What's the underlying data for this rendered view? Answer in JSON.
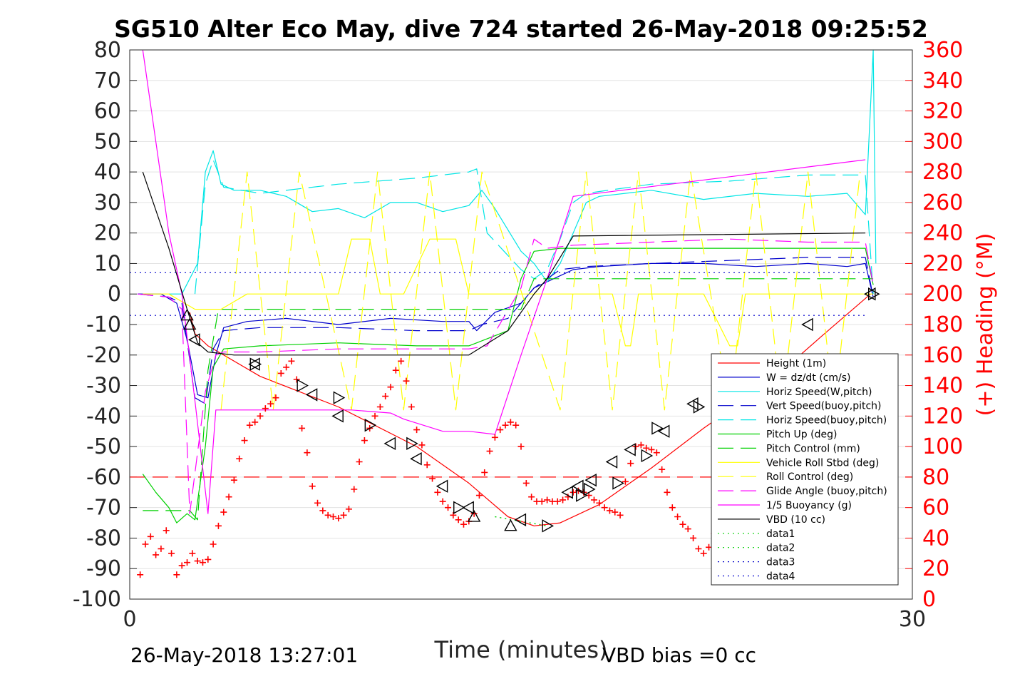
{
  "chart_data": {
    "type": "line",
    "title": "SG510 Alter Eco May, dive 724 started 26-May-2018 09:25:52",
    "xlabel": "Time (minutes)",
    "ylabel_right": "(+) Heading (°M)",
    "xlim": [
      0,
      30
    ],
    "ylim": [
      -100,
      80
    ],
    "ylim_right": [
      0,
      360
    ],
    "x_ticks": [
      "0",
      "30"
    ],
    "y_ticks": [
      "80",
      "70",
      "60",
      "50",
      "40",
      "30",
      "20",
      "10",
      "0",
      "-10",
      "-20",
      "-30",
      "-40",
      "-50",
      "-60",
      "-70",
      "-80",
      "-90",
      "-100"
    ],
    "y_ticks_right": [
      "360",
      "340",
      "320",
      "300",
      "280",
      "260",
      "240",
      "220",
      "200",
      "180",
      "160",
      "140",
      "120",
      "100",
      "80",
      "60",
      "40",
      "20",
      "0"
    ],
    "grid": true,
    "legend_position": "lower-right",
    "footer_left": "26-May-2018 13:27:01",
    "footer_right": "VBD bias =0 cc",
    "series": [
      {
        "name": "Height (1m)",
        "color": "#ff0000",
        "style": "solid",
        "x": [
          2.3,
          2.5,
          3.0,
          5.0,
          8.0,
          11.0,
          13.0,
          14.5,
          15.5,
          16.5,
          18.0,
          20.0,
          22.0,
          24.5,
          26.5,
          28.4
        ],
        "y": [
          -6,
          -13,
          -17,
          -27,
          -37,
          -50,
          -62,
          -73,
          -76,
          -75,
          -69,
          -57,
          -44,
          -29,
          -14,
          0
        ]
      },
      {
        "name": "W = dz/dt (cm/s)",
        "color": "#0000cc",
        "style": "solid",
        "x": [
          0.3,
          1.2,
          1.8,
          2.2,
          2.6,
          3.0,
          3.3,
          3.6,
          4.5,
          6,
          8,
          10,
          12,
          13,
          13.3,
          14,
          15,
          15.5,
          16,
          16.5,
          17,
          18,
          20,
          22,
          24,
          26,
          27.5,
          28.2,
          28.5
        ],
        "y": [
          0,
          0,
          -3,
          -15,
          -33,
          -34,
          -20,
          -11,
          -9,
          -8,
          -10,
          -8,
          -9,
          -9,
          -12,
          -6,
          -3,
          2,
          4,
          6,
          8,
          9,
          10,
          10,
          9,
          10,
          9,
          10,
          -1
        ]
      },
      {
        "name": "Horiz Speed(W,pitch)",
        "color": "#00e5e5",
        "style": "solid",
        "x": [
          1.5,
          2.0,
          2.3,
          2.6,
          2.9,
          3.2,
          3.5,
          4.0,
          5.0,
          6.0,
          7.0,
          8.0,
          9.0,
          10.0,
          11.0,
          12.0,
          13.0,
          13.5,
          14.0,
          15.0,
          15.5,
          16.0,
          16.5,
          17.0,
          17.5,
          18.0,
          20.0,
          22.0,
          24.0,
          26.0,
          27.5,
          28.2,
          28.5,
          28.6
        ],
        "y": [
          0,
          0,
          5,
          10,
          40,
          47,
          36,
          34,
          34,
          32,
          27,
          28,
          25,
          30,
          30,
          27,
          29,
          34,
          28,
          14,
          10,
          4,
          10,
          20,
          30,
          32,
          34,
          31,
          33,
          32,
          33,
          26,
          80,
          10
        ]
      },
      {
        "name": "Vert Speed(buoy,pitch)",
        "color": "#0000cc",
        "style": "dashed",
        "x": [
          0.3,
          1.5,
          2.0,
          2.5,
          2.9,
          3.2,
          3.6,
          5,
          8,
          11,
          13,
          13.5,
          14.5,
          15.5,
          16.5,
          17.5,
          20,
          23,
          26,
          28.2,
          28.5
        ],
        "y": [
          0,
          -1,
          -3,
          -34,
          -36,
          -18,
          -12,
          -11,
          -11,
          -12,
          -12,
          -10,
          -8,
          2,
          8,
          9,
          10,
          11,
          12,
          12,
          -1
        ]
      },
      {
        "name": "Horiz Speed(buoy,pitch)",
        "color": "#00e5e5",
        "style": "dashed",
        "x": [
          2.5,
          2.9,
          3.2,
          3.6,
          5,
          8,
          11,
          13,
          13.3,
          13.7,
          15,
          15.5,
          16,
          16.5,
          17,
          17.5,
          20,
          23,
          26,
          28.2,
          28.5
        ],
        "y": [
          0,
          36,
          44,
          35,
          33,
          36,
          38,
          40,
          41,
          20,
          8,
          5,
          8,
          18,
          30,
          33,
          36,
          37,
          39,
          39,
          0
        ]
      },
      {
        "name": "Pitch Up (deg)",
        "color": "#00d000",
        "style": "solid",
        "x": [
          0.5,
          1.0,
          1.5,
          1.8,
          2.2,
          2.5,
          2.9,
          3.2,
          3.6,
          5,
          8,
          11,
          13,
          13.3,
          14.5,
          15.0,
          15.5,
          16.5,
          18,
          20,
          24,
          28.2,
          28.5
        ],
        "y": [
          -59,
          -65,
          -70,
          -75,
          -72,
          -74,
          -50,
          -24,
          -18,
          -17,
          -16,
          -17,
          -17,
          -16,
          -12,
          5,
          14,
          15,
          15,
          15,
          15,
          15,
          3
        ]
      },
      {
        "name": "Pitch Control (mm)",
        "color": "#00d000",
        "style": "dashed",
        "x": [
          0.5,
          2.3,
          2.6,
          3.0,
          3.4,
          6,
          10,
          13,
          15,
          15.5,
          20,
          25,
          28.5
        ],
        "y": [
          -71,
          -71,
          -74,
          -25,
          -5,
          -5,
          -5,
          -5,
          -5,
          5,
          5,
          5,
          5
        ]
      },
      {
        "name": "Vehicle Roll Stbd (deg)",
        "color": "#ffff00",
        "style": "solid",
        "x": [
          0.5,
          1.5,
          2.5,
          3.5,
          4.5,
          5.0,
          5.5,
          6.0,
          8.0,
          8.5,
          8.8,
          9.2,
          9.6,
          10.5,
          11.5,
          12.0,
          12.5,
          13.0,
          13.5,
          14.5,
          15.5,
          16.5,
          17.5,
          18.5,
          19.0,
          19.2,
          19.5,
          21.0,
          22.0,
          23.0,
          23.3,
          23.6,
          24.5,
          26.0,
          28.5
        ],
        "y": [
          0,
          0,
          -5,
          -5,
          0,
          0,
          0,
          0,
          0,
          18,
          18,
          18,
          0,
          0,
          18,
          18,
          18,
          0,
          0,
          0,
          0,
          0,
          0,
          0,
          -17,
          -17,
          0,
          0,
          0,
          -17,
          -17,
          0,
          0,
          0,
          0
        ]
      },
      {
        "name": "Roll Control (deg)",
        "color": "#ffff00",
        "style": "dashed",
        "x": [
          3.5,
          4.5,
          5.5,
          6.5,
          8.5,
          9.5,
          10.5,
          11.5,
          12.5,
          13.5,
          16.5,
          17.5,
          18.5,
          19.5,
          20.5,
          21.5,
          23.0,
          24.0,
          25.0,
          26.0,
          27.0,
          28.0
        ],
        "y": [
          -38,
          40,
          -38,
          40,
          -38,
          40,
          -38,
          40,
          -38,
          40,
          -38,
          40,
          -38,
          40,
          -38,
          40,
          -38,
          40,
          -38,
          40,
          -38,
          40
        ]
      },
      {
        "name": "Glide Angle (buoy,pitch)",
        "color": "#ff00ff",
        "style": "dashed",
        "x": [
          0.3,
          1.5,
          2.0,
          2.3,
          2.9,
          3.3,
          3.6,
          5,
          8,
          11,
          13,
          13.7,
          15,
          15.5,
          16,
          17,
          20,
          23,
          26,
          28.2,
          28.5
        ],
        "y": [
          0,
          -1,
          -5,
          -72,
          -32,
          -20,
          -19,
          -19,
          -18,
          -18,
          -18,
          -17,
          2,
          18,
          15,
          16,
          17,
          18,
          17,
          17,
          3
        ]
      },
      {
        "name": "1/5 Buoyancy (g)",
        "color": "#ff00ff",
        "style": "solid",
        "x": [
          0.5,
          1.5,
          2.0,
          2.5,
          3.0,
          3.3,
          5,
          8,
          8.5,
          10,
          10.5,
          12,
          13,
          14,
          15,
          16,
          17,
          28.2
        ],
        "y": [
          80,
          20,
          0,
          -35,
          -72,
          -38,
          -38,
          -38,
          -38,
          -39,
          -41,
          -45,
          -45,
          -46,
          -20,
          5,
          32,
          44
        ]
      },
      {
        "name": "VBD (10 cc)",
        "color": "#000000",
        "style": "solid",
        "x": [
          0.5,
          1.5,
          2.2,
          2.6,
          3.0,
          4.0,
          13.0,
          14.5,
          15.5,
          16.0,
          16.5,
          17.0,
          28.2
        ],
        "y": [
          40,
          15,
          -5,
          -16,
          -19,
          -20,
          -20,
          -12,
          0,
          5,
          12,
          19,
          20
        ]
      },
      {
        "name": "data1",
        "color": "#00d000",
        "style": "dotted",
        "x": [
          14.0,
          16.0
        ],
        "y": [
          -73,
          -76
        ]
      },
      {
        "name": "data2",
        "color": "#00d000",
        "style": "dotted",
        "x": [
          14.0,
          16.0
        ],
        "y": [
          -73,
          -76
        ]
      },
      {
        "name": "data3",
        "color": "#0000cc",
        "style": "dotted",
        "x": [
          0,
          28.2
        ],
        "y": [
          7,
          7
        ]
      },
      {
        "name": "data4",
        "color": "#0000cc",
        "style": "dotted",
        "x": [
          0,
          28.2
        ],
        "y": [
          -7,
          -7
        ]
      }
    ],
    "heading_marks": {
      "color": "#ff0000",
      "marker": "plus",
      "axis": "right",
      "x": [
        0.4,
        0.6,
        0.8,
        1.0,
        1.2,
        1.4,
        1.6,
        1.8,
        2.0,
        2.2,
        2.4,
        2.6,
        2.8,
        3.0,
        3.2,
        3.4,
        3.6,
        3.8,
        4.0,
        4.2,
        4.4,
        4.6,
        4.8,
        5.0,
        5.2,
        5.4,
        5.6,
        5.8,
        6.0,
        6.2,
        6.4,
        6.6,
        6.8,
        7.0,
        7.2,
        7.4,
        7.6,
        7.8,
        8.0,
        8.2,
        8.4,
        8.6,
        8.8,
        9.0,
        9.2,
        9.4,
        9.6,
        9.8,
        10.0,
        10.2,
        10.4,
        10.6,
        10.8,
        11.0,
        11.2,
        11.4,
        11.6,
        11.8,
        12.0,
        12.2,
        12.4,
        12.6,
        12.8,
        13.0,
        13.2,
        13.4,
        13.6,
        13.8,
        14.0,
        14.2,
        14.4,
        14.6,
        14.8,
        15.0,
        15.2,
        15.4,
        15.6,
        15.8,
        16.0,
        16.2,
        16.4,
        16.6,
        16.8,
        17.0,
        17.2,
        17.4,
        17.6,
        17.8,
        18.0,
        18.2,
        18.4,
        18.6,
        18.8,
        19.0,
        19.2,
        19.4,
        19.6,
        19.8,
        20.0,
        20.2,
        20.4,
        20.6,
        20.8,
        21.0,
        21.2,
        21.4,
        21.6,
        21.8,
        22.0,
        22.2,
        22.4,
        22.6,
        22.8,
        23.0,
        23.2,
        23.4,
        23.6,
        23.8,
        24.0,
        24.2,
        24.4,
        24.6,
        24.8,
        25.0,
        25.2
      ],
      "y": [
        16,
        36,
        41,
        29,
        33,
        45,
        30,
        16,
        22,
        24,
        30,
        25,
        24,
        26,
        36,
        48,
        57,
        67,
        78,
        92,
        104,
        114,
        116,
        120,
        125,
        128,
        132,
        148,
        152,
        156,
        144,
        112,
        96,
        74,
        63,
        58,
        55,
        54,
        53,
        55,
        59,
        72,
        90,
        104,
        112,
        120,
        126,
        133,
        139,
        150,
        156,
        143,
        126,
        111,
        101,
        88,
        79,
        70,
        64,
        60,
        55,
        52,
        49,
        51,
        56,
        68,
        83,
        97,
        106,
        111,
        114,
        116,
        114,
        100,
        76,
        67,
        64,
        64,
        65,
        64,
        64,
        65,
        67,
        70,
        71,
        70,
        68,
        65,
        63,
        60,
        58,
        57,
        55,
        77,
        89,
        100,
        101,
        99,
        98,
        96,
        85,
        70,
        60,
        54,
        49,
        46,
        40,
        33,
        30,
        34,
        43,
        52,
        62,
        72,
        80,
        88,
        96,
        99,
        102,
        101,
        99,
        92,
        78,
        64,
        54
      ]
    },
    "triangle_marks": {
      "color": "#000000",
      "up_x": [
        2.2,
        2.3,
        13.2,
        14.6
      ],
      "up_y": [
        -7,
        -10,
        -73,
        -76
      ],
      "left_x": [
        2.5,
        4.8,
        7.0,
        8.0,
        10.0,
        11.0,
        12.0,
        13.0,
        15.0,
        16.8,
        17.2,
        17.7,
        18.5,
        19.2,
        20.5,
        21.6,
        24.2,
        26.0,
        28.4
      ],
      "left_y": [
        -15,
        -23,
        -33,
        -40,
        -49,
        -54,
        -63,
        -70,
        -74,
        -65,
        -63,
        -61,
        -55,
        -51,
        -45,
        -36,
        -30,
        -10,
        0
      ],
      "right_x": [
        4.8,
        6.6,
        8.0,
        9.2,
        10.8,
        12.6,
        16.0,
        17.3,
        17.6,
        18.7,
        19.8,
        20.2,
        21.8,
        28.5
      ],
      "right_y": [
        -23,
        -30,
        -34,
        -43,
        -49,
        -70,
        -76,
        -66,
        -64,
        -62,
        -53,
        -44,
        -37,
        0
      ]
    },
    "reference_lines": {
      "heading_dashed": {
        "color": "#ff0000",
        "y_right": 80
      }
    }
  }
}
